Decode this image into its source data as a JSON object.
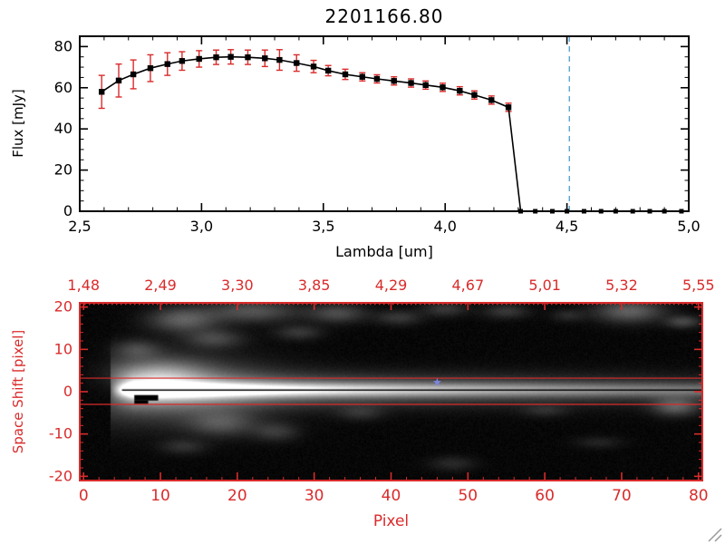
{
  "window": {
    "background": "#ffffff"
  },
  "colors": {
    "axis_top": "#000000",
    "axis_bottom": "#d92b2b",
    "errorbar": "#d92b2b",
    "marker": "#000000",
    "dashed_vline": "#5aa7d0",
    "dashed_hline": "#cc2222",
    "star": "#7b86e0",
    "grip": "#999999"
  },
  "chart_data": [
    {
      "type": "line",
      "title": "2201166.80",
      "xlabel": "Lambda [um]",
      "ylabel": "Flux [mJy]",
      "xlim": [
        2.5,
        5.0
      ],
      "ylim": [
        0,
        85
      ],
      "grid": false,
      "xticks": {
        "values": [
          2.5,
          3.0,
          3.5,
          4.0,
          4.5,
          5.0
        ],
        "labels": [
          "2,5",
          "3,0",
          "3,5",
          "4,0",
          "4,5",
          "5,0"
        ]
      },
      "x_minor_step": 0.1,
      "yticks": {
        "values": [
          0,
          20,
          40,
          60,
          80
        ],
        "labels": [
          "0",
          "20",
          "40",
          "60",
          "80"
        ]
      },
      "y_minor_step": 5,
      "vline": {
        "x": 4.51,
        "style": "dashed",
        "color": "#5aa7d0"
      },
      "hline": {
        "y": 0,
        "style": "dashed",
        "color": "#cc2222"
      },
      "series": [
        {
          "name": "spectrum",
          "marker": "filled-square",
          "line_color": "#000000",
          "errorbar_color": "#d92b2b",
          "x": [
            2.59,
            2.66,
            2.72,
            2.79,
            2.86,
            2.92,
            2.99,
            3.06,
            3.12,
            3.19,
            3.26,
            3.32,
            3.39,
            3.46,
            3.52,
            3.59,
            3.66,
            3.72,
            3.79,
            3.86,
            3.92,
            3.99,
            4.06,
            4.12,
            4.19,
            4.26,
            4.31,
            4.37,
            4.44,
            4.5,
            4.57,
            4.64,
            4.7,
            4.77,
            4.84,
            4.9,
            4.97
          ],
          "y": [
            58,
            63.5,
            66.5,
            69.5,
            71.5,
            73,
            74,
            74.8,
            75,
            74.8,
            74.3,
            73.5,
            72,
            70.3,
            68.3,
            66.5,
            65.3,
            64.3,
            63.3,
            62.3,
            61.3,
            60.2,
            58.5,
            56.5,
            54,
            50.5,
            0,
            0,
            0,
            0,
            0,
            0,
            0,
            0,
            0,
            0,
            0
          ],
          "yerr": [
            8,
            8,
            7,
            6.5,
            5.5,
            4.5,
            4,
            3.5,
            3.5,
            3.5,
            4,
            5,
            4,
            3,
            2.5,
            2.5,
            2,
            2,
            2,
            2,
            2,
            2,
            2,
            2,
            2,
            2,
            0,
            0,
            0,
            0,
            0,
            0,
            0,
            0,
            0,
            0,
            0
          ]
        }
      ]
    },
    {
      "type": "heatmap",
      "xlabel": "Pixel",
      "ylabel": "Space Shift [pixel]",
      "xlim": [
        -0.5,
        80.5
      ],
      "ylim": [
        -21,
        21
      ],
      "axis_color": "#d92b2b",
      "xticks": {
        "values": [
          0,
          10,
          20,
          30,
          40,
          50,
          60,
          70,
          80
        ],
        "labels": [
          "0",
          "10",
          "20",
          "30",
          "40",
          "50",
          "60",
          "70",
          "80"
        ]
      },
      "x_minor_step": 2,
      "yticks": {
        "values": [
          20,
          10,
          0,
          -10,
          -20
        ],
        "labels": [
          "20",
          "10",
          "0",
          "-10",
          "-20"
        ]
      },
      "y_minor_step": 2,
      "top_axis_labels": [
        "1,48",
        "2,49",
        "3,30",
        "3,85",
        "4,29",
        "4,67",
        "5,01",
        "5,32",
        "5,55"
      ],
      "aperture_lines_y": [
        3.2,
        -3.0
      ],
      "center_line": {
        "y": 0.4,
        "x_start": 5.0,
        "x_end": 80.5,
        "color": "#000000"
      },
      "star_marker": {
        "x": 46,
        "y": 2.2,
        "color": "#7b86e0"
      },
      "mask_rects": [
        {
          "x1": 6.6,
          "y1": -0.8,
          "x2": 9.7,
          "y2": -2.1
        },
        {
          "x1": 6.6,
          "y1": -2.1,
          "x2": 8.4,
          "y2": -2.9
        }
      ],
      "trace": {
        "y_center": 0.4,
        "x_start": 3.5,
        "peak_x": 9,
        "decay": 55,
        "core_sigma": 1.1,
        "wing_sigma": 2.6,
        "wing_amp": 0.45,
        "halo_amp": 0.35,
        "halo_x": 10,
        "halo_xsigma": 9,
        "halo_sigma": 5
      },
      "blobs": [
        {
          "x": 10,
          "y": 4,
          "sx": 4,
          "sy": 2.5,
          "a": 0.32
        },
        {
          "x": 13,
          "y": 17,
          "sx": 3,
          "sy": 2,
          "a": 0.3
        },
        {
          "x": 22,
          "y": 19,
          "sx": 4,
          "sy": 1.8,
          "a": 0.25
        },
        {
          "x": 17,
          "y": 12.5,
          "sx": 2.5,
          "sy": 1.5,
          "a": 0.2
        },
        {
          "x": 7,
          "y": 10,
          "sx": 2,
          "sy": 1.5,
          "a": 0.18
        },
        {
          "x": 28,
          "y": 14,
          "sx": 2,
          "sy": 1.2,
          "a": 0.15
        },
        {
          "x": 33,
          "y": 18.5,
          "sx": 2.5,
          "sy": 1.5,
          "a": 0.22
        },
        {
          "x": 41,
          "y": 17.5,
          "sx": 2,
          "sy": 1.2,
          "a": 0.15
        },
        {
          "x": 47,
          "y": 19.5,
          "sx": 2,
          "sy": 1.2,
          "a": 0.15
        },
        {
          "x": 55,
          "y": 19,
          "sx": 2,
          "sy": 1.2,
          "a": 0.15
        },
        {
          "x": 63,
          "y": 18,
          "sx": 1.5,
          "sy": 1,
          "a": 0.1
        },
        {
          "x": 71,
          "y": 19,
          "sx": 3,
          "sy": 1.8,
          "a": 0.3
        },
        {
          "x": 78,
          "y": 16.5,
          "sx": 1.5,
          "sy": 1,
          "a": 0.2
        },
        {
          "x": 18,
          "y": -7.5,
          "sx": 3,
          "sy": 2,
          "a": 0.22
        },
        {
          "x": 25,
          "y": -9.5,
          "sx": 2,
          "sy": 1.5,
          "a": 0.15
        },
        {
          "x": 13,
          "y": -13,
          "sx": 2,
          "sy": 1.2,
          "a": 0.12
        },
        {
          "x": 36,
          "y": -5,
          "sx": 2,
          "sy": 1.2,
          "a": 0.12
        },
        {
          "x": 60,
          "y": -4.5,
          "sx": 2,
          "sy": 1,
          "a": 0.1
        },
        {
          "x": 77,
          "y": -3.5,
          "sx": 2,
          "sy": 1.5,
          "a": 0.28
        },
        {
          "x": 48,
          "y": -17,
          "sx": 2,
          "sy": 1.2,
          "a": 0.1
        },
        {
          "x": 67,
          "y": -12,
          "sx": 2,
          "sy": 1,
          "a": 0.08
        }
      ]
    }
  ]
}
